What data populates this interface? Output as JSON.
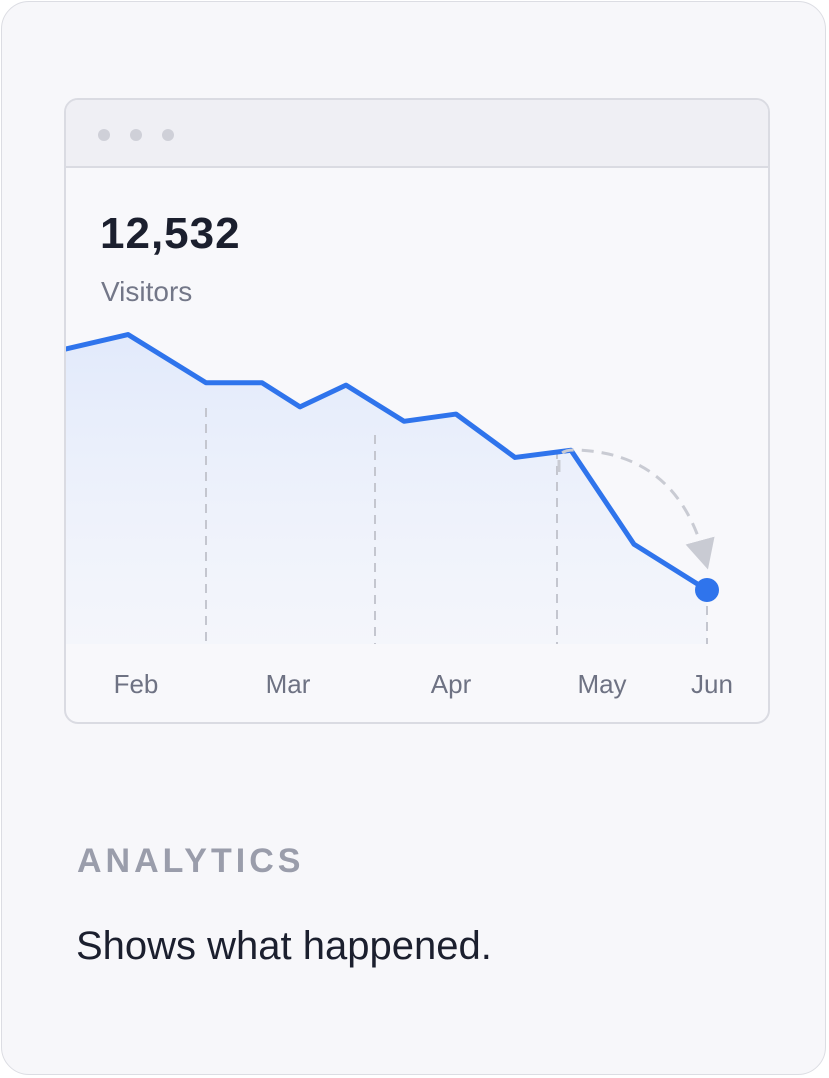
{
  "card": {
    "section_label": "ANALYTICS",
    "headline": "Shows what happened."
  },
  "metric": {
    "value": "12,532",
    "label": "Visitors"
  },
  "colors": {
    "line": "#2f74ec",
    "fill_top": "#dfe8fb",
    "grid": "#c4c6cf",
    "arrow": "#c9cbd3"
  },
  "chart_data": {
    "type": "area",
    "x_ticks": [
      "Feb",
      "Mar",
      "Apr",
      "May",
      "Jun"
    ],
    "series": [
      {
        "values": [
          100,
          106,
          86,
          86,
          76,
          85,
          70,
          73,
          55,
          58,
          19,
          0
        ]
      }
    ],
    "grid": "dashed vertical lines",
    "legend": "none"
  }
}
